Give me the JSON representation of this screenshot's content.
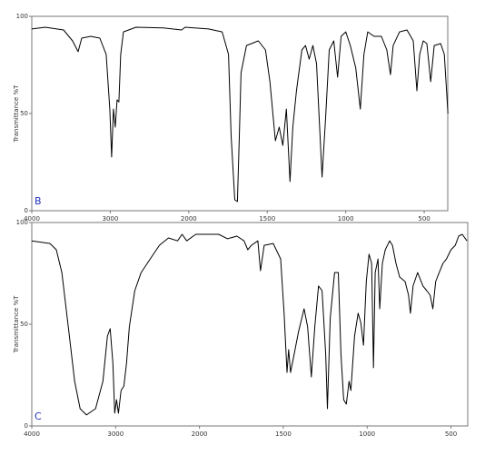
{
  "chart_data": [
    {
      "type": "line",
      "label": "B",
      "ylabel": "Transmittance %T",
      "color": "#000000",
      "xlim": [
        4000,
        350
      ],
      "xticks": [
        4000,
        3000,
        2000,
        1500,
        1000,
        500
      ],
      "ylim": [
        0,
        100
      ],
      "yticks": [
        0,
        50,
        100
      ],
      "x": [
        4000,
        3827,
        3595,
        3480,
        3410,
        3364,
        3249,
        3133,
        3052,
        3006,
        2983,
        2960,
        2936,
        2913,
        2890,
        2867,
        2832,
        2671,
        2324,
        2092,
        2046,
        1874,
        1787,
        1747,
        1730,
        1707,
        1690,
        1678,
        1667,
        1632,
        1557,
        1511,
        1483,
        1448,
        1424,
        1401,
        1378,
        1355,
        1337,
        1314,
        1279,
        1256,
        1233,
        1209,
        1186,
        1151,
        1128,
        1105,
        1076,
        1052,
        1029,
        1000,
        971,
        936,
        907,
        884,
        860,
        820,
        773,
        738,
        715,
        698,
        657,
        610,
        570,
        547,
        529,
        506,
        483,
        459,
        436,
        395,
        372,
        349
      ],
      "values": [
        93.5,
        94.4,
        93,
        87.4,
        81.8,
        88.8,
        89.7,
        88.8,
        80.4,
        52.3,
        27.6,
        52.3,
        43,
        57,
        56,
        80.4,
        92,
        94.4,
        94,
        93,
        94.4,
        93.5,
        92,
        80.4,
        38.3,
        5.6,
        4.7,
        38.3,
        71,
        85,
        87.4,
        82.7,
        66.4,
        36,
        43,
        33.6,
        52.3,
        15,
        43,
        61.7,
        82.7,
        85,
        78,
        85,
        75.7,
        17.3,
        47.7,
        82.7,
        87.4,
        68.7,
        89.7,
        92,
        85,
        73.4,
        52.3,
        80.4,
        92,
        89.7,
        89.7,
        82.7,
        70,
        85,
        92,
        93,
        87.4,
        61.7,
        80.4,
        87.4,
        86,
        66.4,
        85,
        86,
        80.4,
        50
      ]
    },
    {
      "type": "line",
      "label": "C",
      "ylabel": "Transmittance %T",
      "color": "#000000",
      "xlim": [
        4000,
        400
      ],
      "xticks": [
        4000,
        3000,
        2000,
        1500,
        1000,
        500
      ],
      "ylim": [
        0,
        100
      ],
      "yticks": [
        0,
        50,
        100
      ],
      "x": [
        4000,
        3783,
        3707,
        3641,
        3565,
        3489,
        3424,
        3348,
        3239,
        3152,
        3098,
        3065,
        3033,
        3011,
        2989,
        2967,
        2935,
        2902,
        2870,
        2837,
        2772,
        2696,
        2587,
        2478,
        2370,
        2261,
        2207,
        2152,
        2043,
        1886,
        1832,
        1777,
        1734,
        1712,
        1690,
        1652,
        1636,
        1614,
        1560,
        1516,
        1495,
        1478,
        1468,
        1457,
        1446,
        1435,
        1409,
        1376,
        1355,
        1333,
        1312,
        1290,
        1269,
        1247,
        1237,
        1220,
        1194,
        1172,
        1156,
        1140,
        1124,
        1108,
        1097,
        1075,
        1054,
        1038,
        1022,
        1005,
        989,
        973,
        962,
        952,
        935,
        925,
        909,
        892,
        866,
        849,
        828,
        806,
        774,
        753,
        742,
        726,
        699,
        667,
        645,
        624,
        608,
        591,
        570,
        548,
        527,
        500,
        474,
        454,
        433,
        405
      ],
      "values": [
        91,
        89.7,
        86.6,
        75.4,
        48.7,
        21.9,
        8.5,
        5.4,
        8.5,
        21.9,
        44.2,
        47.8,
        30.8,
        6.3,
        12.9,
        6.3,
        17.4,
        19.6,
        30.8,
        48.7,
        66.5,
        75.4,
        82.1,
        88.8,
        92.4,
        91,
        94.2,
        91,
        94.2,
        94.2,
        92,
        93.3,
        91,
        86.6,
        88.8,
        91,
        76.3,
        88.8,
        89.7,
        82.1,
        55.4,
        26.3,
        37.5,
        26.3,
        30.8,
        35.3,
        46.4,
        57.6,
        48.7,
        24.1,
        48.7,
        68.8,
        66.5,
        35.3,
        8.5,
        53.1,
        75.4,
        75.4,
        35.3,
        12.9,
        10.7,
        21.9,
        17.4,
        44.2,
        55.4,
        50.9,
        39.7,
        71,
        84.4,
        79.9,
        28.6,
        75.4,
        82.1,
        57.6,
        79.9,
        86.6,
        91,
        88.8,
        79.9,
        73.2,
        71,
        64.3,
        55.4,
        68.8,
        75.4,
        68.8,
        66.5,
        64.3,
        57.6,
        71,
        75.4,
        79.9,
        82.1,
        86.6,
        88.8,
        93.3,
        94.2,
        91
      ]
    }
  ]
}
